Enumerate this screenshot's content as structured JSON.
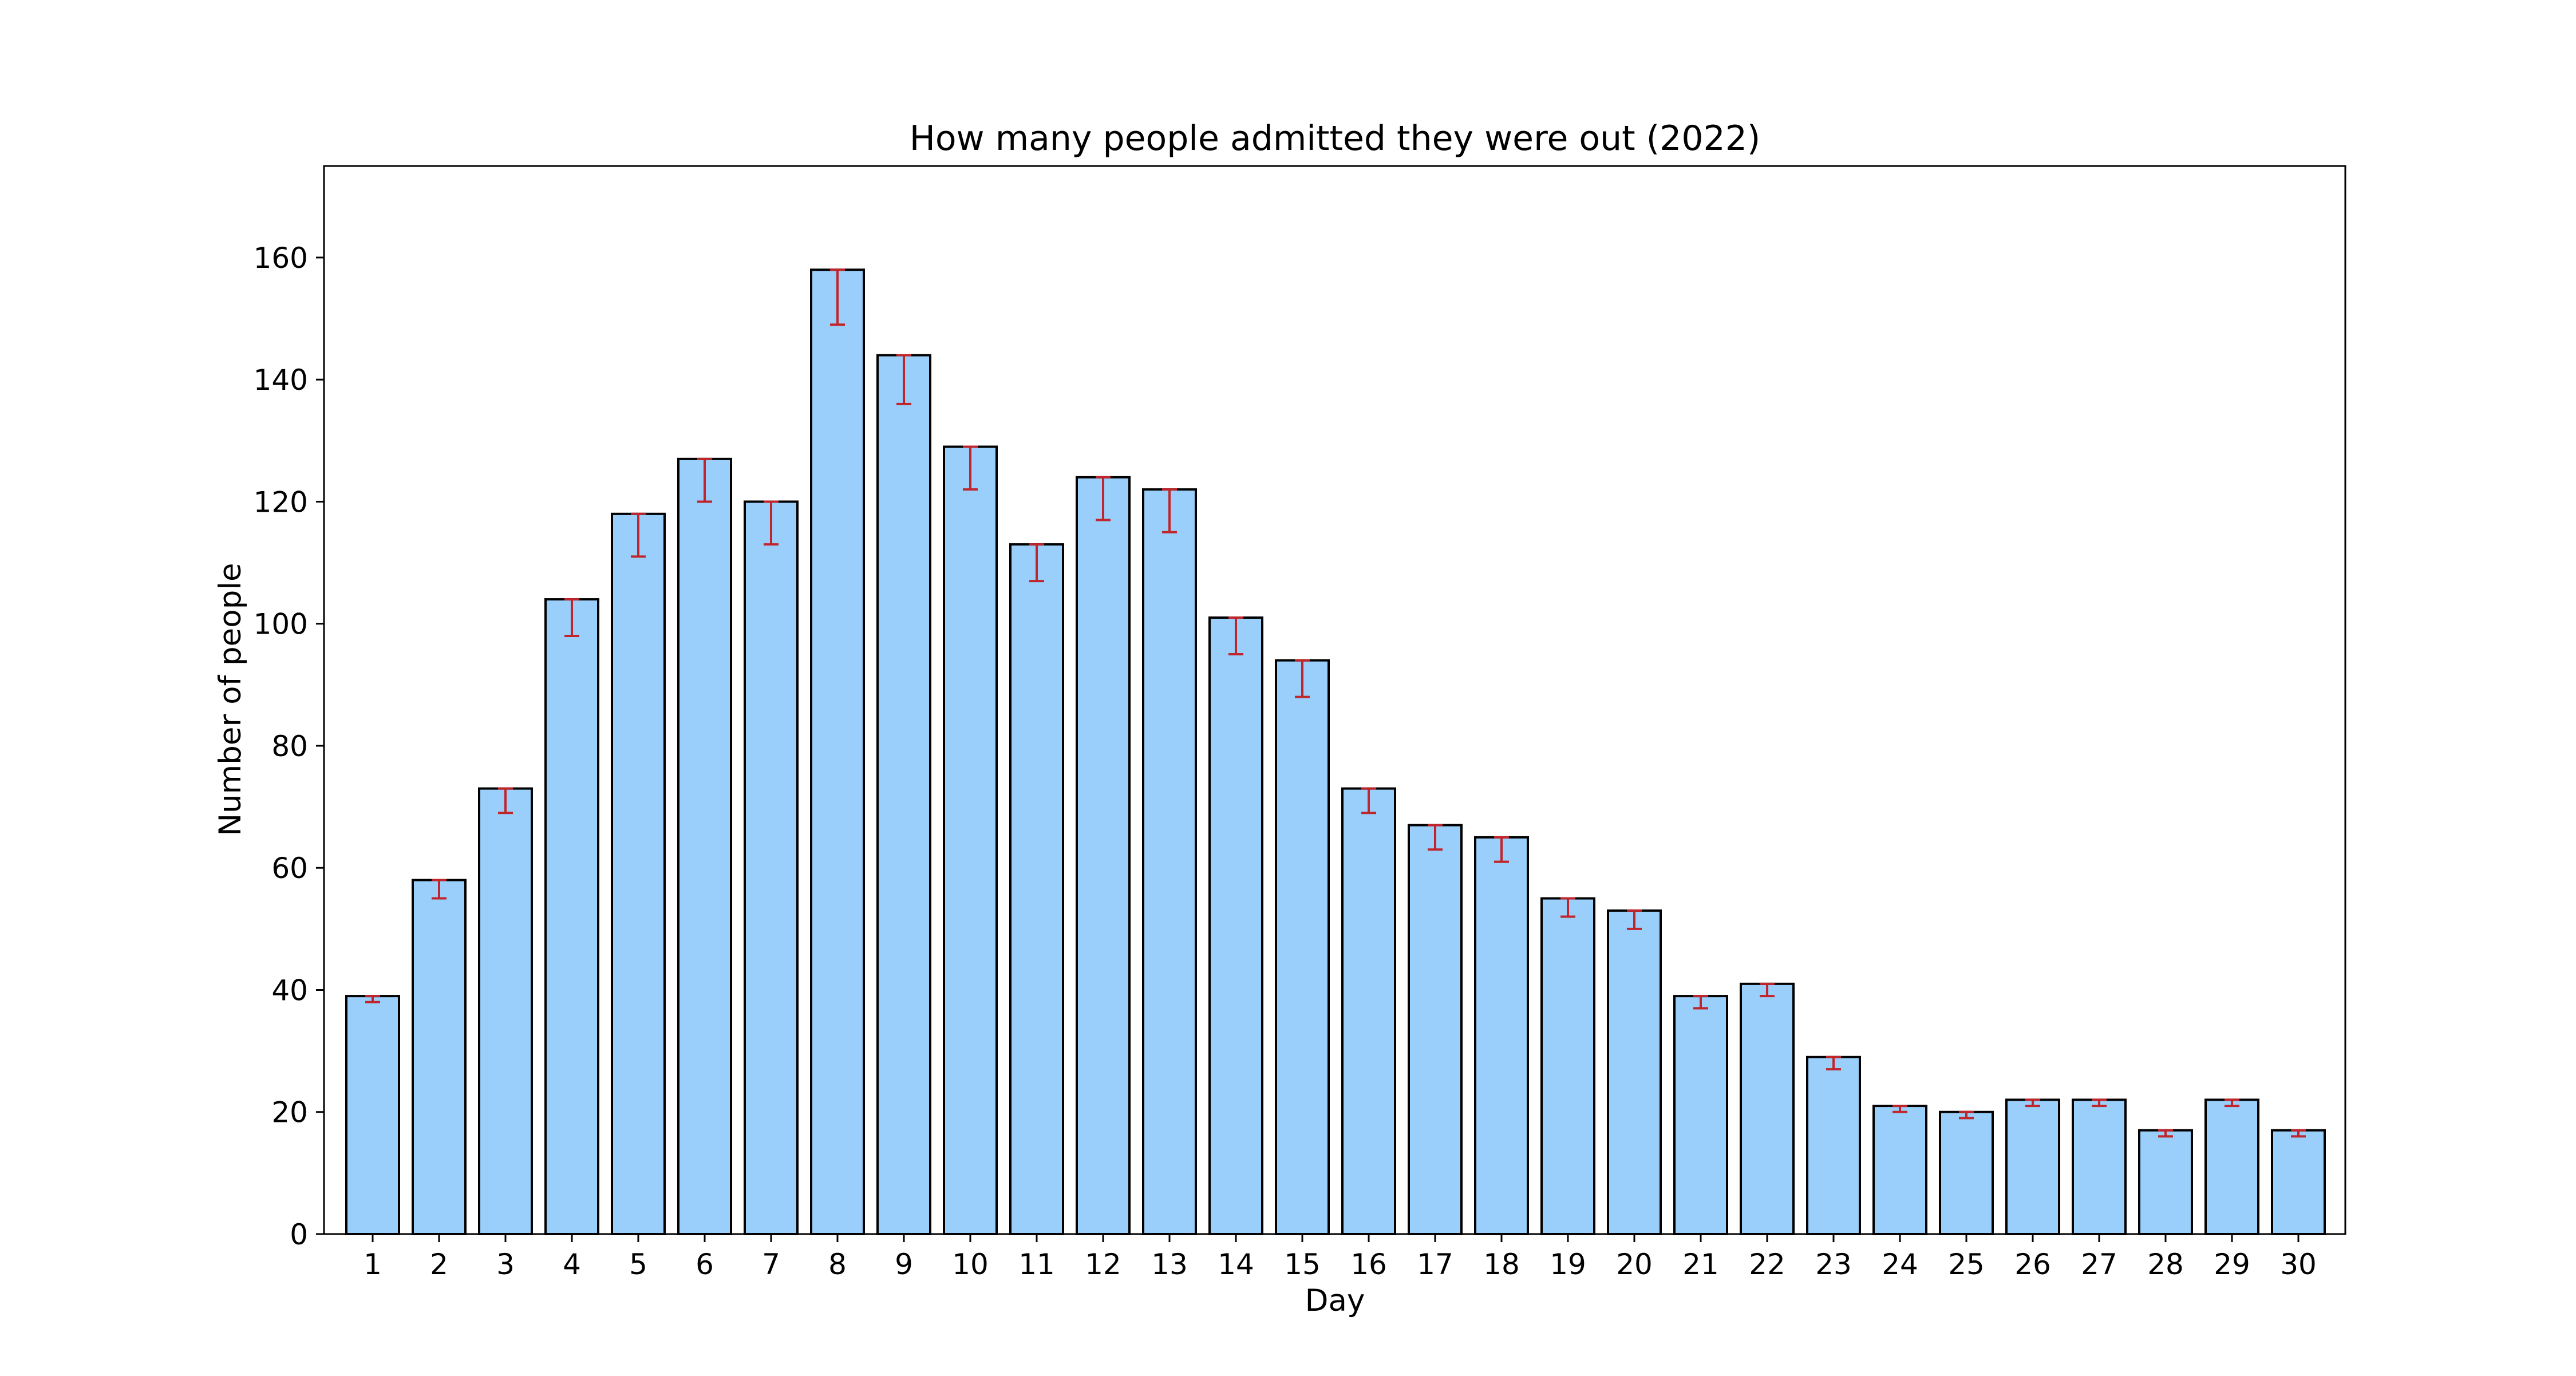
{
  "chart_data": {
    "type": "bar",
    "title": "How many people admitted they were out (2022)",
    "xlabel": "Day",
    "ylabel": "Number of people",
    "ylim": [
      0,
      175
    ],
    "yticks": [
      0,
      20,
      40,
      60,
      80,
      100,
      120,
      140,
      160
    ],
    "grid": false,
    "legend": "none",
    "categories": [
      "1",
      "2",
      "3",
      "4",
      "5",
      "6",
      "7",
      "8",
      "9",
      "10",
      "11",
      "12",
      "13",
      "14",
      "15",
      "16",
      "17",
      "18",
      "19",
      "20",
      "21",
      "22",
      "23",
      "24",
      "25",
      "26",
      "27",
      "28",
      "29",
      "30"
    ],
    "values": [
      39,
      58,
      73,
      104,
      118,
      127,
      120,
      158,
      144,
      129,
      113,
      124,
      122,
      101,
      94,
      73,
      67,
      65,
      55,
      53,
      39,
      41,
      29,
      21,
      20,
      22,
      22,
      17,
      22,
      17
    ],
    "error_lower": [
      38,
      55,
      69,
      98,
      111,
      120,
      113,
      149,
      136,
      122,
      107,
      117,
      115,
      95,
      88,
      69,
      63,
      61,
      52,
      50,
      37,
      39,
      27,
      20,
      19,
      21,
      21,
      16,
      21,
      16
    ],
    "colors": {
      "bar_fill": "#99CFFA",
      "bar_edge": "#000000",
      "error_bar": "#C0252B"
    }
  }
}
